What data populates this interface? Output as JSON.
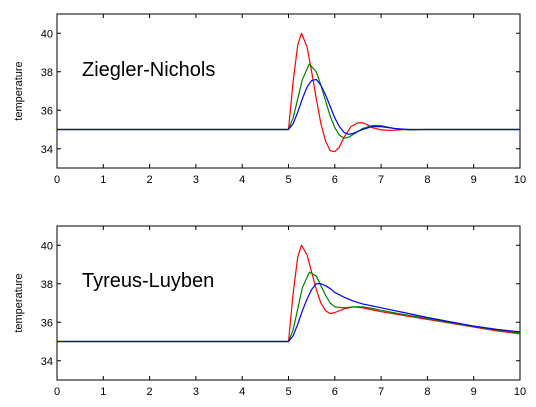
{
  "chart_data": [
    {
      "type": "line",
      "annotation": "Ziegler-Nichols",
      "ylabel": "temperature",
      "xlim": [
        0,
        10
      ],
      "ylim": [
        33,
        41
      ],
      "xticks": [
        0,
        1,
        2,
        3,
        4,
        5,
        6,
        7,
        8,
        9,
        10
      ],
      "yticks": [
        34,
        36,
        38,
        40
      ],
      "grid": false,
      "series": [
        {
          "color": "#ff0000",
          "x": [
            0,
            5.0,
            5.1,
            5.2,
            5.28,
            5.4,
            5.5,
            5.6,
            5.7,
            5.8,
            5.9,
            6.0,
            6.1,
            6.2,
            6.35,
            6.5,
            6.6,
            6.7,
            6.8,
            7.0,
            7.2,
            7.5,
            8.0,
            10
          ],
          "y": [
            35,
            35,
            37.5,
            39.4,
            40.0,
            39.3,
            38.0,
            36.6,
            35.3,
            34.4,
            33.9,
            33.85,
            34.1,
            34.6,
            35.15,
            35.35,
            35.35,
            35.25,
            35.1,
            34.98,
            34.95,
            35.0,
            35.0,
            35.0
          ]
        },
        {
          "color": "#008000",
          "x": [
            0,
            5.0,
            5.1,
            5.2,
            5.3,
            5.45,
            5.6,
            5.7,
            5.8,
            5.9,
            6.0,
            6.1,
            6.2,
            6.3,
            6.4,
            6.6,
            6.8,
            7.0,
            7.3,
            7.6,
            8.0,
            10
          ],
          "y": [
            35,
            35,
            35.6,
            36.6,
            37.6,
            38.4,
            38.0,
            37.3,
            36.5,
            35.7,
            35.1,
            34.7,
            34.55,
            34.6,
            34.75,
            35.05,
            35.2,
            35.2,
            35.05,
            34.98,
            35.0,
            35.0
          ]
        },
        {
          "color": "#0000ff",
          "x": [
            0,
            5.0,
            5.1,
            5.2,
            5.3,
            5.4,
            5.5,
            5.6,
            5.7,
            5.8,
            5.9,
            6.0,
            6.1,
            6.2,
            6.3,
            6.4,
            6.6,
            6.8,
            7.0,
            7.3,
            7.6,
            8.0,
            10
          ],
          "y": [
            35,
            35,
            35.3,
            35.9,
            36.6,
            37.2,
            37.55,
            37.6,
            37.3,
            36.8,
            36.2,
            35.6,
            35.15,
            34.85,
            34.75,
            34.8,
            35.0,
            35.15,
            35.15,
            35.05,
            35.0,
            35.0,
            35.0
          ]
        }
      ]
    },
    {
      "type": "line",
      "annotation": "Tyreus-Luyben",
      "ylabel": "temperature",
      "xlim": [
        0,
        10
      ],
      "ylim": [
        33,
        41
      ],
      "xticks": [
        0,
        1,
        2,
        3,
        4,
        5,
        6,
        7,
        8,
        9,
        10
      ],
      "yticks": [
        34,
        36,
        38,
        40
      ],
      "grid": false,
      "series": [
        {
          "color": "#ff0000",
          "x": [
            0,
            5.0,
            5.1,
            5.2,
            5.28,
            5.4,
            5.5,
            5.6,
            5.7,
            5.8,
            5.9,
            6.0,
            6.2,
            6.4,
            6.6,
            6.8,
            7.0,
            7.5,
            8.0,
            8.5,
            9.0,
            9.5,
            10
          ],
          "y": [
            35,
            35,
            37.5,
            39.4,
            40.0,
            39.5,
            38.6,
            37.7,
            37.0,
            36.6,
            36.45,
            36.5,
            36.7,
            36.8,
            36.75,
            36.65,
            36.55,
            36.35,
            36.15,
            35.95,
            35.75,
            35.55,
            35.4
          ]
        },
        {
          "color": "#008000",
          "x": [
            0,
            5.0,
            5.1,
            5.2,
            5.3,
            5.45,
            5.6,
            5.7,
            5.8,
            5.9,
            6.0,
            6.2,
            6.4,
            6.6,
            6.8,
            7.0,
            7.5,
            8.0,
            8.5,
            9.0,
            9.5,
            10
          ],
          "y": [
            35,
            35,
            35.6,
            36.7,
            37.8,
            38.6,
            38.4,
            37.9,
            37.4,
            37.0,
            36.8,
            36.75,
            36.8,
            36.8,
            36.72,
            36.62,
            36.4,
            36.2,
            35.98,
            35.78,
            35.6,
            35.45
          ]
        },
        {
          "color": "#0000ff",
          "x": [
            0,
            5.0,
            5.1,
            5.2,
            5.3,
            5.4,
            5.5,
            5.6,
            5.7,
            5.8,
            5.9,
            6.0,
            6.2,
            6.4,
            6.6,
            6.8,
            7.0,
            7.5,
            8.0,
            8.5,
            9.0,
            9.5,
            10
          ],
          "y": [
            35,
            35,
            35.3,
            35.9,
            36.6,
            37.2,
            37.7,
            38.0,
            38.0,
            37.9,
            37.75,
            37.55,
            37.3,
            37.1,
            36.95,
            36.85,
            36.75,
            36.5,
            36.25,
            36.02,
            35.8,
            35.63,
            35.5
          ]
        }
      ]
    }
  ]
}
